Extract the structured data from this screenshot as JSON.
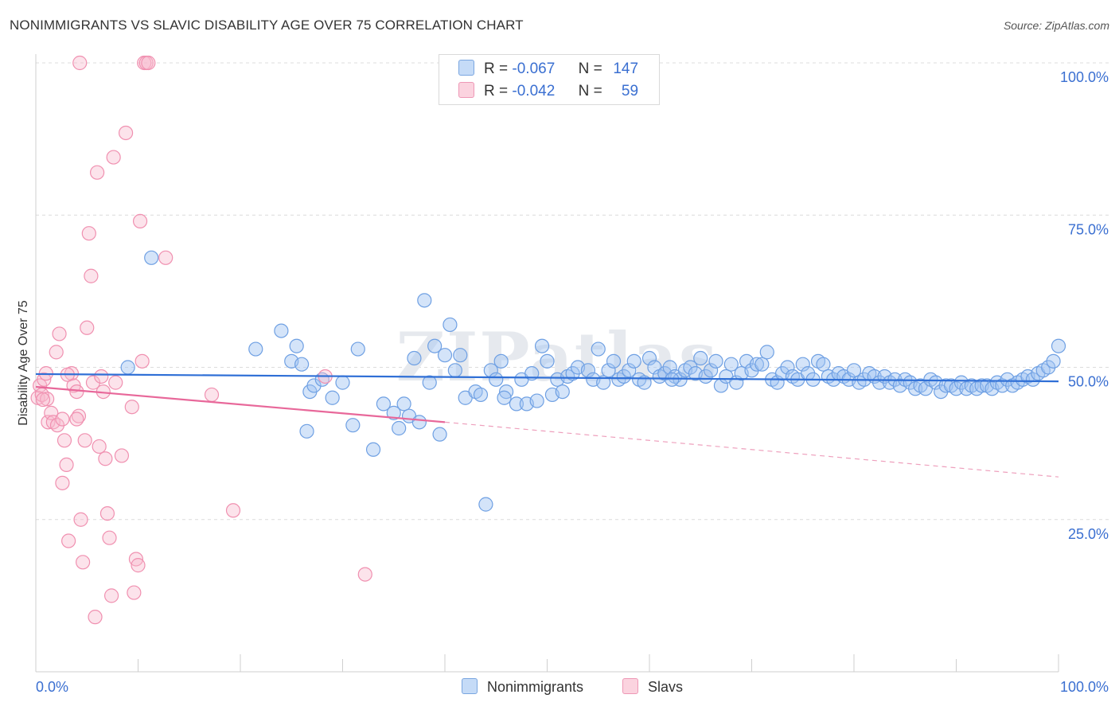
{
  "title": "NONIMMIGRANTS VS SLAVIC DISABILITY AGE OVER 75 CORRELATION CHART",
  "source": "Source: ZipAtlas.com",
  "watermark": "ZIPatlas",
  "legend": {
    "rows": [
      {
        "r_label": "R =",
        "r_value": "-0.067",
        "n_label": "N =",
        "n_value": "147",
        "color": "#a9c8f2"
      },
      {
        "r_label": "R =",
        "r_value": "-0.042",
        "n_label": "N =",
        "n_value": "59",
        "color": "#f7b9cc"
      }
    ]
  },
  "bottom_legend": [
    {
      "label": "Nonimmigrants",
      "color": "#a9c8f2"
    },
    {
      "label": "Slavs",
      "color": "#f7b9cc"
    }
  ],
  "chart_data": {
    "type": "scatter",
    "title": "NONIMMIGRANTS VS SLAVIC DISABILITY AGE OVER 75 CORRELATION CHART",
    "xlabel": "",
    "ylabel": "Disability Age Over 75",
    "xlim": [
      0,
      100
    ],
    "ylim": [
      0,
      100
    ],
    "x_tick_labels": [
      "0.0%",
      "100.0%"
    ],
    "y_tick_labels": [
      "25.0%",
      "50.0%",
      "75.0%",
      "100.0%"
    ],
    "y_ticks": [
      25,
      50,
      75,
      100
    ],
    "grid": true,
    "legend_position": "top-center",
    "colors": {
      "Nonimmigrants": "#6fa0e3",
      "Slavs": "#f090b0",
      "blue_line": "#2f6fd6",
      "pink_line": "#e8689a"
    },
    "series": [
      {
        "name": "Nonimmigrants",
        "trend": {
          "x": [
            0,
            100
          ],
          "y": [
            48.9,
            47.7
          ]
        },
        "points": [
          [
            9,
            50
          ],
          [
            11.3,
            68
          ],
          [
            21.5,
            53
          ],
          [
            24,
            56
          ],
          [
            25,
            51
          ],
          [
            25.5,
            53.5
          ],
          [
            26,
            50.5
          ],
          [
            26.5,
            39.5
          ],
          [
            26.8,
            46
          ],
          [
            27.2,
            47
          ],
          [
            28,
            48
          ],
          [
            29,
            45
          ],
          [
            30,
            47.5
          ],
          [
            31,
            40.5
          ],
          [
            31.5,
            53
          ],
          [
            33,
            36.5
          ],
          [
            34,
            44
          ],
          [
            35,
            42.5
          ],
          [
            35.5,
            40
          ],
          [
            36,
            44
          ],
          [
            36.5,
            42
          ],
          [
            37,
            51.5
          ],
          [
            37.5,
            41
          ],
          [
            38,
            61
          ],
          [
            38.5,
            47.5
          ],
          [
            39,
            53.5
          ],
          [
            39.5,
            39
          ],
          [
            40,
            52
          ],
          [
            40.5,
            57
          ],
          [
            41,
            49.5
          ],
          [
            41.5,
            52
          ],
          [
            42,
            45
          ],
          [
            43,
            46
          ],
          [
            43.5,
            45.5
          ],
          [
            44,
            27.5
          ],
          [
            44.5,
            49.5
          ],
          [
            45,
            48
          ],
          [
            45.5,
            51
          ],
          [
            46,
            46
          ],
          [
            47,
            44
          ],
          [
            47.5,
            48
          ],
          [
            48,
            44
          ],
          [
            48.5,
            49
          ],
          [
            49,
            44.5
          ],
          [
            49.5,
            53.5
          ],
          [
            50,
            51
          ],
          [
            50.5,
            45.5
          ],
          [
            51,
            48
          ],
          [
            51.5,
            46
          ],
          [
            52,
            48.5
          ],
          [
            52.5,
            49
          ],
          [
            53,
            50
          ],
          [
            54,
            49.5
          ],
          [
            54.5,
            48
          ],
          [
            55,
            53
          ],
          [
            55.5,
            47.5
          ],
          [
            56,
            49.5
          ],
          [
            56.5,
            51
          ],
          [
            57,
            48
          ],
          [
            57.5,
            48.5
          ],
          [
            58,
            49.5
          ],
          [
            58.5,
            51
          ],
          [
            59,
            48
          ],
          [
            59.5,
            47.5
          ],
          [
            60,
            51.5
          ],
          [
            60.5,
            50
          ],
          [
            61,
            48.5
          ],
          [
            61.5,
            49
          ],
          [
            62,
            50
          ],
          [
            62.5,
            48.5
          ],
          [
            63,
            48
          ],
          [
            63.5,
            49.5
          ],
          [
            64,
            50
          ],
          [
            64.5,
            49
          ],
          [
            65,
            51.5
          ],
          [
            65.5,
            48.5
          ],
          [
            66,
            49.5
          ],
          [
            66.5,
            51
          ],
          [
            67,
            47
          ],
          [
            67.5,
            48.5
          ],
          [
            68,
            50.5
          ],
          [
            68.5,
            47.5
          ],
          [
            69,
            49
          ],
          [
            69.5,
            51
          ],
          [
            70,
            49.5
          ],
          [
            70.5,
            50.5
          ],
          [
            71,
            50.5
          ],
          [
            71.5,
            52.5
          ],
          [
            72,
            48
          ],
          [
            72.5,
            47.5
          ],
          [
            73,
            49
          ],
          [
            73.5,
            50
          ],
          [
            74,
            48.5
          ],
          [
            74.5,
            48
          ],
          [
            75,
            50.5
          ],
          [
            75.5,
            49
          ],
          [
            76,
            48
          ],
          [
            76.5,
            51
          ],
          [
            77,
            50.5
          ],
          [
            77.5,
            48.5
          ],
          [
            78,
            48
          ],
          [
            78.5,
            49
          ],
          [
            79,
            48.5
          ],
          [
            79.5,
            48
          ],
          [
            80,
            49.5
          ],
          [
            80.5,
            47.5
          ],
          [
            81,
            48
          ],
          [
            81.5,
            49
          ],
          [
            82,
            48.5
          ],
          [
            82.5,
            47.5
          ],
          [
            83,
            48.5
          ],
          [
            83.5,
            47.5
          ],
          [
            84,
            48
          ],
          [
            84.5,
            47
          ],
          [
            85,
            48
          ],
          [
            85.5,
            47.5
          ],
          [
            86,
            46.5
          ],
          [
            86.5,
            47
          ],
          [
            87,
            46.5
          ],
          [
            87.5,
            48
          ],
          [
            88,
            47.5
          ],
          [
            88.5,
            46
          ],
          [
            89,
            47
          ],
          [
            89.5,
            47
          ],
          [
            90,
            46.5
          ],
          [
            90.5,
            47.5
          ],
          [
            91,
            46.5
          ],
          [
            91.5,
            47
          ],
          [
            92,
            46.5
          ],
          [
            92.5,
            47
          ],
          [
            93,
            47
          ],
          [
            93.5,
            46.5
          ],
          [
            94,
            47.5
          ],
          [
            94.5,
            47
          ],
          [
            95,
            48
          ],
          [
            95.5,
            47
          ],
          [
            96,
            47.5
          ],
          [
            96.5,
            48
          ],
          [
            97,
            48.5
          ],
          [
            97.5,
            48
          ],
          [
            98,
            49
          ],
          [
            98.5,
            49.5
          ],
          [
            99,
            50
          ],
          [
            99.5,
            51
          ],
          [
            100,
            53.5
          ],
          [
            62.2,
            48
          ],
          [
            45.8,
            45
          ]
        ]
      },
      {
        "name": "Slavs",
        "trend": {
          "x": [
            0,
            40
          ],
          "y": [
            46.8,
            41
          ]
        },
        "trend_dashed": {
          "x": [
            40,
            100
          ],
          "y": [
            41,
            32
          ]
        },
        "points": [
          [
            0.2,
            45
          ],
          [
            0.4,
            47
          ],
          [
            0.6,
            45.5
          ],
          [
            0.8,
            48
          ],
          [
            1,
            49
          ],
          [
            1.2,
            41
          ],
          [
            1.5,
            42.5
          ],
          [
            1.7,
            41
          ],
          [
            2,
            52.5
          ],
          [
            2.3,
            55.5
          ],
          [
            2.6,
            31
          ],
          [
            2.8,
            38
          ],
          [
            3,
            34
          ],
          [
            3.2,
            21.5
          ],
          [
            3.5,
            49
          ],
          [
            3.7,
            47
          ],
          [
            4,
            46
          ],
          [
            4.2,
            42
          ],
          [
            4.4,
            25
          ],
          [
            4.6,
            18
          ],
          [
            4.8,
            38
          ],
          [
            5,
            56.5
          ],
          [
            5.2,
            72
          ],
          [
            5.4,
            65
          ],
          [
            5.6,
            47.5
          ],
          [
            5.8,
            9
          ],
          [
            6,
            82
          ],
          [
            6.2,
            37
          ],
          [
            6.4,
            48.5
          ],
          [
            6.6,
            46
          ],
          [
            6.8,
            35
          ],
          [
            7,
            26
          ],
          [
            7.2,
            22
          ],
          [
            7.4,
            12.5
          ],
          [
            7.6,
            84.5
          ],
          [
            7.8,
            47.5
          ],
          [
            8.4,
            35.5
          ],
          [
            8.8,
            88.5
          ],
          [
            9.4,
            43.5
          ],
          [
            9.6,
            13
          ],
          [
            9.8,
            18.5
          ],
          [
            10,
            17.5
          ],
          [
            10.2,
            74
          ],
          [
            10.4,
            51
          ],
          [
            10.6,
            100
          ],
          [
            10.8,
            100
          ],
          [
            11,
            100
          ],
          [
            12.7,
            68
          ],
          [
            17.2,
            45.5
          ],
          [
            19.3,
            26.5
          ],
          [
            28.3,
            48.5
          ],
          [
            32.2,
            16
          ],
          [
            4.3,
            100
          ],
          [
            1.1,
            44.8
          ],
          [
            0.7,
            44.7
          ],
          [
            2.1,
            40.5
          ],
          [
            2.6,
            41.5
          ],
          [
            4,
            41.5
          ],
          [
            3.1,
            48.8
          ]
        ]
      }
    ]
  }
}
